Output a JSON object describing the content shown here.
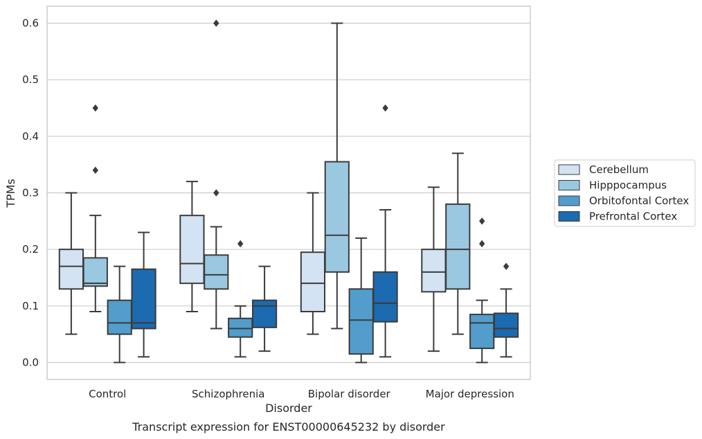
{
  "chart_data": {
    "type": "box",
    "caption": "Transcript expression for ENST00000645232 by disorder",
    "xlabel": "Disorder",
    "ylabel": "TPMs",
    "ylim": [
      -0.03,
      0.63
    ],
    "yticks": [
      0.0,
      0.1,
      0.2,
      0.3,
      0.4,
      0.5,
      0.6
    ],
    "grid": true,
    "legend_position": "right",
    "categories": [
      "Control",
      "Schizophrenia",
      "Bipolar disorder",
      "Major depression"
    ],
    "series": [
      {
        "name": "Cerebellum",
        "color": "#d3e3f3",
        "boxes": [
          {
            "low": 0.05,
            "q1": 0.13,
            "median": 0.17,
            "q3": 0.2,
            "high": 0.3,
            "outliers": []
          },
          {
            "low": 0.09,
            "q1": 0.14,
            "median": 0.175,
            "q3": 0.26,
            "high": 0.32,
            "outliers": []
          },
          {
            "low": 0.05,
            "q1": 0.09,
            "median": 0.14,
            "q3": 0.195,
            "high": 0.3,
            "outliers": []
          },
          {
            "low": 0.02,
            "q1": 0.125,
            "median": 0.16,
            "q3": 0.2,
            "high": 0.31,
            "outliers": []
          }
        ]
      },
      {
        "name": "Hipppocampus",
        "color": "#9ac8e0",
        "boxes": [
          {
            "low": 0.09,
            "q1": 0.135,
            "median": 0.14,
            "q3": 0.185,
            "high": 0.26,
            "outliers": [
              0.34,
              0.45
            ]
          },
          {
            "low": 0.06,
            "q1": 0.13,
            "median": 0.155,
            "q3": 0.19,
            "high": 0.24,
            "outliers": [
              0.3,
              0.6
            ]
          },
          {
            "low": 0.06,
            "q1": 0.16,
            "median": 0.225,
            "q3": 0.355,
            "high": 0.6,
            "outliers": []
          },
          {
            "low": 0.05,
            "q1": 0.13,
            "median": 0.2,
            "q3": 0.28,
            "high": 0.37,
            "outliers": []
          }
        ]
      },
      {
        "name": "Orbitofontal Cortex",
        "color": "#529dcc",
        "boxes": [
          {
            "low": 0.0,
            "q1": 0.05,
            "median": 0.07,
            "q3": 0.11,
            "high": 0.17,
            "outliers": []
          },
          {
            "low": 0.01,
            "q1": 0.045,
            "median": 0.06,
            "q3": 0.078,
            "high": 0.1,
            "outliers": [
              0.21
            ]
          },
          {
            "low": 0.0,
            "q1": 0.015,
            "median": 0.075,
            "q3": 0.13,
            "high": 0.22,
            "outliers": []
          },
          {
            "low": 0.0,
            "q1": 0.025,
            "median": 0.07,
            "q3": 0.085,
            "high": 0.11,
            "outliers": [
              0.21,
              0.25
            ]
          }
        ]
      },
      {
        "name": "Prefrontal Cortex",
        "color": "#1c6aaf",
        "boxes": [
          {
            "low": 0.01,
            "q1": 0.06,
            "median": 0.07,
            "q3": 0.165,
            "high": 0.23,
            "outliers": []
          },
          {
            "low": 0.02,
            "q1": 0.062,
            "median": 0.1,
            "q3": 0.11,
            "high": 0.17,
            "outliers": []
          },
          {
            "low": 0.01,
            "q1": 0.072,
            "median": 0.105,
            "q3": 0.16,
            "high": 0.27,
            "outliers": [
              0.45
            ]
          },
          {
            "low": 0.01,
            "q1": 0.045,
            "median": 0.06,
            "q3": 0.087,
            "high": 0.13,
            "outliers": [
              0.17
            ]
          }
        ]
      }
    ]
  }
}
